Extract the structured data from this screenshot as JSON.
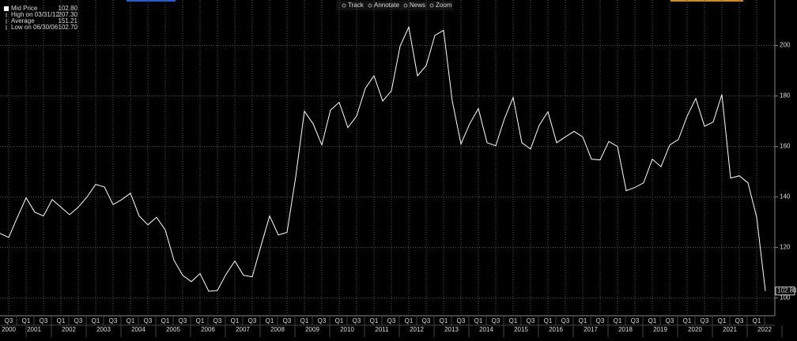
{
  "toolbar": [
    "Track",
    "Annotate",
    "News",
    "Zoom"
  ],
  "legend": [
    {
      "label": "Mid Price",
      "value": "102.80"
    },
    {
      "label": "High on 03/31/12",
      "value": "207.30"
    },
    {
      "label": "Average",
      "value": "151.21"
    },
    {
      "label": "Low on 06/30/06",
      "value": "102.70"
    }
  ],
  "chart_data": {
    "type": "line",
    "categories": [
      null,
      "Q3",
      null,
      "Q1",
      null,
      "Q3",
      null,
      "Q1",
      null,
      "Q3",
      null,
      "Q1",
      null,
      "Q3",
      null,
      "Q1",
      null,
      "Q3",
      null,
      "Q1",
      null,
      "Q3",
      null,
      "Q1",
      null,
      "Q3",
      null,
      "Q1",
      null,
      "Q3",
      null,
      "Q1",
      null,
      "Q3",
      null,
      "Q1",
      null,
      "Q3",
      null,
      "Q1",
      null,
      "Q3",
      null,
      "Q1",
      null,
      "Q3",
      null,
      "Q1",
      null,
      "Q3",
      null,
      "Q1",
      null,
      "Q3",
      null,
      "Q1",
      null,
      "Q3",
      null,
      "Q1",
      null,
      "Q3",
      null,
      "Q1",
      null,
      "Q3",
      null,
      "Q1",
      null,
      "Q3",
      null,
      "Q1",
      null,
      "Q3",
      null,
      "Q1",
      null,
      "Q3",
      null,
      "Q1",
      null,
      "Q3",
      null,
      "Q1",
      null,
      "Q3",
      null,
      "Q1",
      null
    ],
    "year_labels": [
      null,
      "2000",
      null,
      "2001",
      null,
      null,
      null,
      "2002",
      null,
      null,
      null,
      "2003",
      null,
      null,
      null,
      "2004",
      null,
      null,
      null,
      "2005",
      null,
      null,
      null,
      "2006",
      null,
      null,
      null,
      "2007",
      null,
      null,
      null,
      "2008",
      null,
      null,
      null,
      "2009",
      null,
      null,
      null,
      "2010",
      null,
      null,
      null,
      "2011",
      null,
      null,
      null,
      "2012",
      null,
      null,
      null,
      "2013",
      null,
      null,
      null,
      "2014",
      null,
      null,
      null,
      "2015",
      null,
      null,
      null,
      "2016",
      null,
      null,
      null,
      "2017",
      null,
      null,
      null,
      "2018",
      null,
      null,
      null,
      "2019",
      null,
      null,
      null,
      "2020",
      null,
      null,
      null,
      "2021",
      null,
      null,
      null,
      "2022",
      null
    ],
    "series": [
      {
        "name": "Mid Price",
        "color": "#ffffff",
        "values": [
          125.6,
          124,
          132,
          139.7,
          134,
          132.5,
          139,
          136,
          133,
          136,
          140,
          145,
          144,
          137,
          139,
          141.5,
          132.5,
          129,
          132,
          127,
          115,
          109,
          106.5,
          109.7,
          102.7,
          103,
          109.5,
          114.7,
          109,
          108.4,
          120.6,
          132.5,
          125,
          126,
          148,
          174,
          169,
          160.6,
          174.4,
          177.5,
          167.5,
          172,
          183,
          188,
          178,
          182,
          199.7,
          207.3,
          188,
          192,
          204,
          206,
          178,
          161,
          169,
          175,
          161.5,
          160.3,
          171,
          179.4,
          161.5,
          159,
          168.4,
          173.8,
          161.5,
          163.8,
          166,
          163.8,
          155,
          154.7,
          162,
          160,
          142.5,
          143.8,
          145.6,
          155,
          152,
          160.6,
          162.8,
          172,
          179,
          168,
          169.7,
          180.6,
          147.5,
          148.4,
          145.6,
          132,
          102.8
        ]
      }
    ],
    "ylim": [
      93,
      218
    ],
    "yticks": [
      100,
      120,
      140,
      160,
      180,
      200
    ],
    "grid": true
  }
}
